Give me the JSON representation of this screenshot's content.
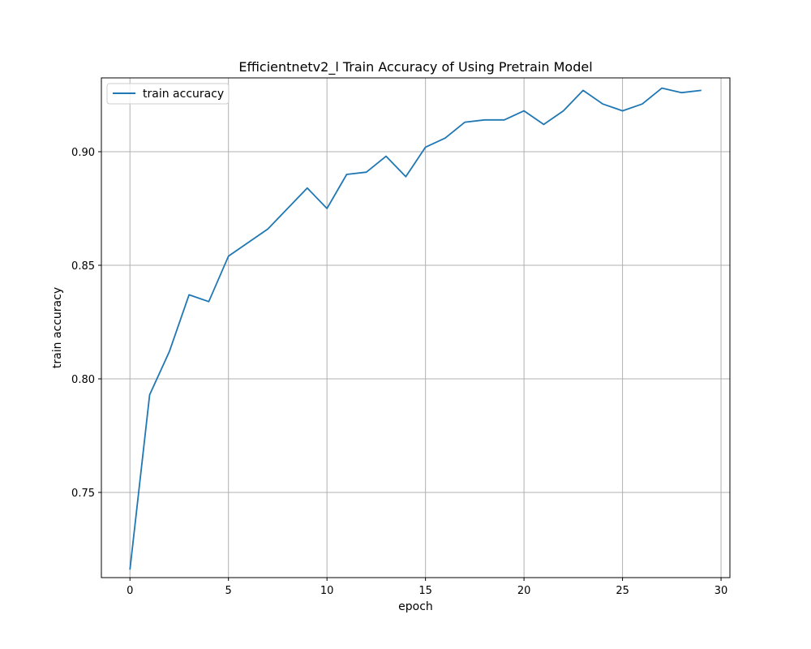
{
  "chart_data": {
    "type": "line",
    "title": "Efficientnetv2_l Train Accuracy of Using Pretrain Model",
    "xlabel": "epoch",
    "ylabel": "train accuracy",
    "xlim": [
      -1.45,
      30.45
    ],
    "ylim": [
      0.7125,
      0.9325
    ],
    "xticks": [
      0,
      5,
      10,
      15,
      20,
      25,
      30
    ],
    "xtick_labels": [
      "0",
      "5",
      "10",
      "15",
      "20",
      "25",
      "30"
    ],
    "yticks": [
      0.75,
      0.8,
      0.85,
      0.9
    ],
    "ytick_labels": [
      "0.75",
      "0.80",
      "0.85",
      "0.90"
    ],
    "grid": true,
    "legend_position": "top-left",
    "series": [
      {
        "name": "train accuracy",
        "color": "#1f77b4",
        "x": [
          0,
          1,
          2,
          3,
          4,
          5,
          6,
          7,
          8,
          9,
          10,
          11,
          12,
          13,
          14,
          15,
          16,
          17,
          18,
          19,
          20,
          21,
          22,
          23,
          24,
          25,
          26,
          27,
          28,
          29
        ],
        "values": [
          0.716,
          0.793,
          0.812,
          0.837,
          0.834,
          0.854,
          0.86,
          0.866,
          0.875,
          0.884,
          0.875,
          0.89,
          0.891,
          0.898,
          0.889,
          0.902,
          0.906,
          0.913,
          0.914,
          0.914,
          0.918,
          0.912,
          0.918,
          0.927,
          0.921,
          0.918,
          0.921,
          0.928,
          0.926,
          0.927
        ]
      }
    ]
  }
}
